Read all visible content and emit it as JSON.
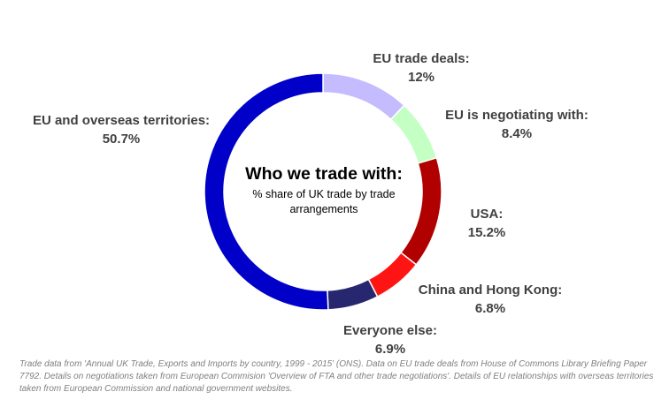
{
  "chart_data": {
    "type": "pie",
    "title": "Who we trade with:",
    "subtitle": "% share of UK trade by trade arrangements",
    "slices": [
      {
        "name": "EU trade deals:",
        "value": 12,
        "value_label": "12%",
        "color": "#c4bcff"
      },
      {
        "name": "EU is negotiating with:",
        "value": 8.4,
        "value_label": "8.4%",
        "color": "#c4ffc4"
      },
      {
        "name": "USA:",
        "value": 15.2,
        "value_label": "15.2%",
        "color": "#b00000"
      },
      {
        "name": "China and Hong Kong:",
        "value": 6.8,
        "value_label": "6.8%",
        "color": "#ff1414"
      },
      {
        "name": "Everyone else:",
        "value": 6.9,
        "value_label": "6.9%",
        "color": "#272770"
      },
      {
        "name": "EU and overseas territories:",
        "value": 50.7,
        "value_label": "50.7%",
        "color": "#0000c8"
      }
    ],
    "start_angle_deg": 0,
    "direction": "clockwise",
    "style": "donut"
  },
  "source_note": "Trade data from 'Annual UK Trade, Exports and Imports by country, 1999 - 2015' (ONS). Data on EU trade deals from House of Commons Library Briefing Paper 7792. Details on negotiations taken from European Commision 'Overview of FTA and other trade negotiations'. Details of EU relationships with overseas territories taken from European Commission and national government websites."
}
